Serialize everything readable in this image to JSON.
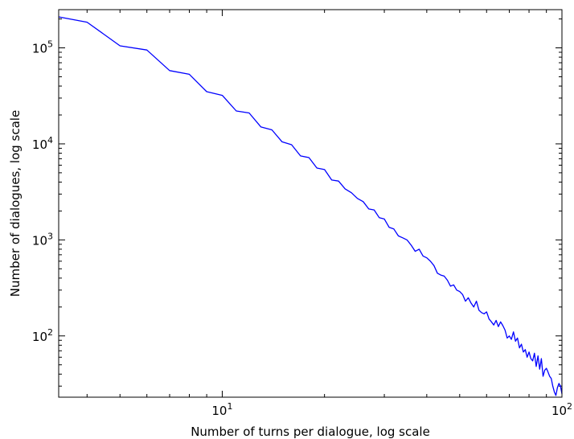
{
  "chart_data": {
    "type": "line",
    "xlabel": "Number of turns per dialogue, log scale",
    "ylabel": "Number of dialogues, log scale",
    "xscale": "log",
    "yscale": "log",
    "xlim": [
      3.3,
      100
    ],
    "ylim": [
      23,
      250000
    ],
    "grid": false,
    "line_color": "#0000ff",
    "x_ticks": [
      {
        "base": "10",
        "exp": "1"
      },
      {
        "base": "10",
        "exp": "2"
      }
    ],
    "y_ticks": [
      {
        "base": "10",
        "exp": "2"
      },
      {
        "base": "10",
        "exp": "3"
      },
      {
        "base": "10",
        "exp": "4"
      },
      {
        "base": "10",
        "exp": "5"
      }
    ],
    "series": [
      {
        "x": [
          3.3,
          4,
          5,
          6,
          7,
          8,
          9,
          10,
          11,
          12,
          13,
          14,
          15,
          16,
          17,
          18,
          19,
          20,
          21,
          22,
          23,
          24,
          25,
          26,
          27,
          28,
          29,
          30,
          31,
          32,
          33,
          34,
          35,
          36,
          37,
          38,
          39,
          40,
          41,
          42,
          43,
          44,
          45,
          46,
          47,
          48,
          49,
          50,
          51,
          52,
          53,
          54,
          55,
          56,
          57,
          58,
          59,
          60,
          61,
          62,
          63,
          64,
          65,
          66,
          67,
          68,
          69,
          70,
          71,
          72,
          73,
          74,
          75,
          76,
          77,
          78,
          79,
          80,
          81,
          82,
          83,
          84,
          85,
          86,
          87,
          88,
          89,
          90,
          91,
          92,
          93,
          94,
          95,
          96,
          97,
          98,
          99,
          100
        ],
        "y": [
          210000,
          185000,
          105000,
          95000,
          58000,
          53000,
          35000,
          32000,
          22000,
          21000,
          15000,
          14000,
          10500,
          9800,
          7500,
          7200,
          5600,
          5400,
          4200,
          4100,
          3400,
          3100,
          2700,
          2500,
          2100,
          2050,
          1700,
          1650,
          1350,
          1300,
          1100,
          1050,
          1000,
          880,
          760,
          800,
          680,
          650,
          600,
          540,
          450,
          430,
          420,
          380,
          330,
          340,
          300,
          290,
          270,
          230,
          250,
          220,
          200,
          230,
          185,
          175,
          170,
          178,
          150,
          140,
          130,
          145,
          125,
          140,
          128,
          115,
          95,
          100,
          92,
          110,
          88,
          95,
          75,
          82,
          68,
          72,
          60,
          68,
          58,
          55,
          66,
          48,
          62,
          45,
          58,
          38,
          44,
          46,
          42,
          38,
          36,
          30,
          26,
          24,
          29,
          32,
          30,
          25
        ]
      }
    ]
  }
}
